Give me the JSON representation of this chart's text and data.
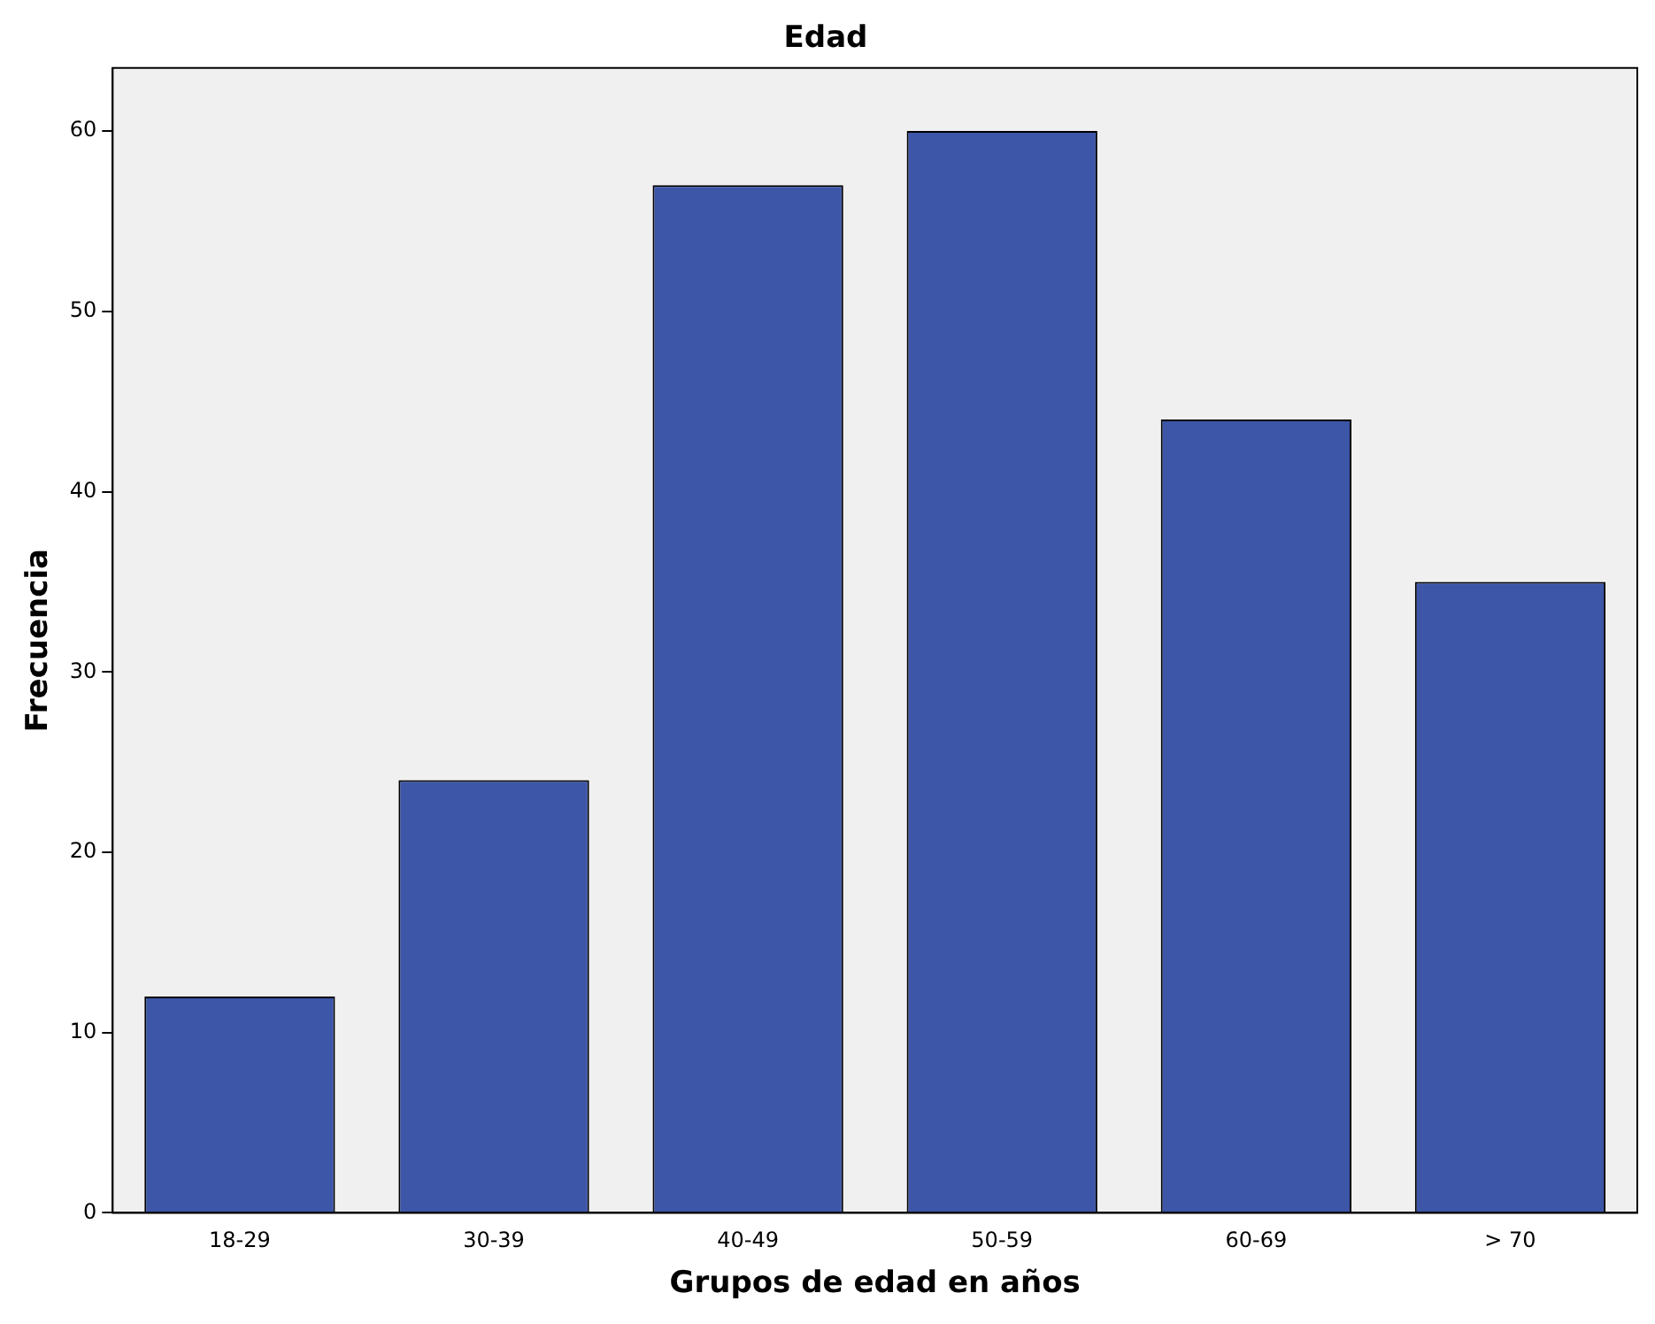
{
  "chart_data": {
    "type": "bar",
    "title": "Edad",
    "xlabel": "Grupos de edad en años",
    "ylabel": "Frecuencia",
    "categories": [
      "18-29",
      "30-39",
      "40-49",
      "50-59",
      "60-69",
      "> 70"
    ],
    "values": [
      12,
      24,
      57,
      60,
      44,
      35
    ],
    "color": "#3d56a8",
    "ylim": [
      0,
      63.5
    ],
    "yticks": [
      0,
      10,
      20,
      30,
      40,
      50,
      60
    ],
    "grid": false,
    "legend": false
  }
}
